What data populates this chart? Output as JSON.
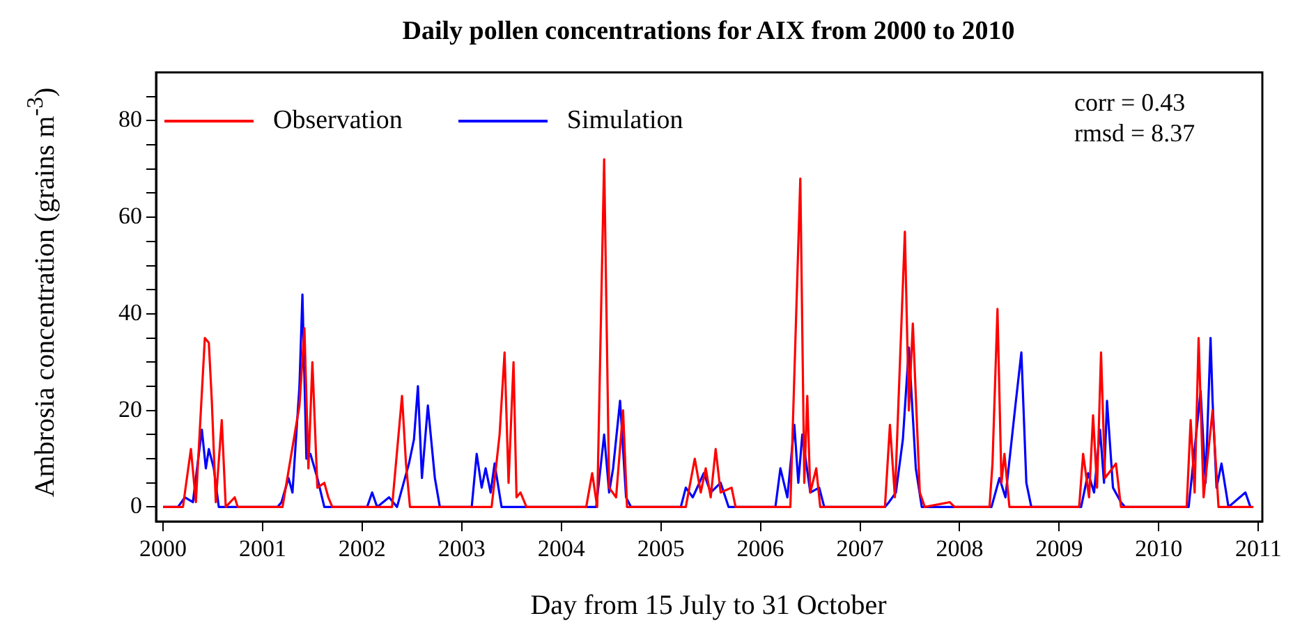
{
  "chart_data": {
    "type": "line",
    "title": "Daily pollen concentrations for AIX from 2000 to 2010",
    "xlabel": "Day from 15 July to 31 October",
    "ylabel": "Ambrosia concentration (grains m$^{-3}$)",
    "annotations": [
      "corr = 0.43",
      "rmsd = 8.37"
    ],
    "xlim": [
      1999.93,
      2011.04
    ],
    "xticks": [
      2000,
      2001,
      2002,
      2003,
      2004,
      2005,
      2006,
      2007,
      2008,
      2009,
      2010,
      2011
    ],
    "ylim": [
      -3,
      90
    ],
    "yticks": [
      0,
      {
        "value": 5,
        "label": null
      },
      {
        "value": 10,
        "label": null
      },
      {
        "value": 15,
        "label": null
      },
      20,
      {
        "value": 25,
        "label": null
      },
      {
        "value": 30,
        "label": null
      },
      {
        "value": 35,
        "label": null
      },
      40,
      {
        "value": 45,
        "label": null
      },
      {
        "value": 50,
        "label": null
      },
      {
        "value": 55,
        "label": null
      },
      60,
      {
        "value": 65,
        "label": null
      },
      {
        "value": 70,
        "label": null
      },
      {
        "value": 75,
        "label": null
      },
      80,
      {
        "value": 85,
        "label": null
      }
    ],
    "grid": false,
    "legend": "top left",
    "marker": "none",
    "line_style": "solid",
    "series": [
      {
        "name": "Observation",
        "color": "#ff0000",
        "x": [
          2000.0,
          2000.2,
          2000.28,
          2000.33,
          2000.42,
          2000.46,
          2000.49,
          2000.53,
          2000.59,
          2000.63,
          2000.72,
          2000.75,
          2001.2,
          2001.37,
          2001.42,
          2001.46,
          2001.5,
          2001.55,
          2001.62,
          2001.66,
          2001.7,
          2002.3,
          2002.4,
          2002.44,
          2002.48,
          2003.3,
          2003.38,
          2003.43,
          2003.47,
          2003.52,
          2003.55,
          2003.59,
          2003.65,
          2004.25,
          2004.31,
          2004.36,
          2004.43,
          2004.48,
          2004.55,
          2004.62,
          2004.66,
          2005.25,
          2005.34,
          2005.4,
          2005.45,
          2005.5,
          2005.55,
          2005.6,
          2005.71,
          2005.75,
          2006.3,
          2006.4,
          2006.44,
          2006.47,
          2006.5,
          2006.56,
          2006.6,
          2007.25,
          2007.3,
          2007.35,
          2007.45,
          2007.49,
          2007.53,
          2007.6,
          2007.65,
          2007.9,
          2007.95,
          2008.3,
          2008.33,
          2008.38,
          2008.42,
          2008.45,
          2008.5,
          2009.2,
          2009.24,
          2009.3,
          2009.34,
          2009.38,
          2009.42,
          2009.46,
          2009.57,
          2009.62,
          2010.28,
          2010.32,
          2010.36,
          2010.4,
          2010.45,
          2010.54,
          2010.6,
          2010.95
        ],
        "values": [
          0,
          0,
          12,
          1,
          35,
          34,
          22,
          1,
          18,
          0,
          2,
          0,
          0,
          21,
          37,
          8,
          30,
          4,
          5,
          2,
          0,
          0,
          23,
          9,
          0,
          0,
          15,
          32,
          5,
          30,
          2,
          3,
          0,
          0,
          7,
          0,
          72,
          4,
          2,
          20,
          0,
          0,
          10,
          3,
          8,
          2,
          12,
          3,
          4,
          0,
          0,
          68,
          5,
          23,
          3,
          8,
          0,
          0,
          17,
          2,
          57,
          20,
          38,
          3,
          0,
          1,
          0,
          0,
          9,
          41,
          5,
          11,
          0,
          0,
          11,
          2,
          19,
          4,
          32,
          6,
          9,
          0,
          0,
          18,
          3,
          35,
          2,
          20,
          0,
          0
        ]
      },
      {
        "name": "Simulation",
        "color": "#0000ff",
        "x": [
          2000.0,
          2000.15,
          2000.22,
          2000.3,
          2000.39,
          2000.43,
          2000.46,
          2000.51,
          2000.56,
          2001.15,
          2001.19,
          2001.26,
          2001.3,
          2001.37,
          2001.4,
          2001.44,
          2001.48,
          2001.55,
          2001.62,
          2002.05,
          2002.1,
          2002.15,
          2002.27,
          2002.35,
          2002.47,
          2002.52,
          2002.56,
          2002.6,
          2002.66,
          2002.73,
          2002.78,
          2003.1,
          2003.15,
          2003.2,
          2003.24,
          2003.29,
          2003.33,
          2003.4,
          2004.35,
          2004.43,
          2004.48,
          2004.52,
          2004.59,
          2004.65,
          2004.7,
          2005.2,
          2005.25,
          2005.32,
          2005.43,
          2005.5,
          2005.6,
          2005.68,
          2006.15,
          2006.2,
          2006.27,
          2006.34,
          2006.38,
          2006.42,
          2006.5,
          2006.59,
          2006.64,
          2007.25,
          2007.29,
          2007.36,
          2007.43,
          2007.49,
          2007.56,
          2007.62,
          2008.32,
          2008.4,
          2008.46,
          2008.56,
          2008.62,
          2008.67,
          2008.72,
          2009.22,
          2009.29,
          2009.35,
          2009.41,
          2009.45,
          2009.48,
          2009.54,
          2009.62,
          2009.66,
          2010.3,
          2010.42,
          2010.47,
          2010.52,
          2010.54,
          2010.58,
          2010.63,
          2010.7,
          2010.87,
          2010.92
        ],
        "values": [
          0,
          0,
          2,
          1,
          16,
          8,
          12,
          8,
          0,
          0,
          1,
          6,
          3,
          25,
          44,
          10,
          11,
          6,
          0,
          0,
          3,
          0,
          2,
          0,
          9,
          14,
          25,
          6,
          21,
          6,
          0,
          0,
          11,
          4,
          8,
          3,
          9,
          0,
          0,
          15,
          3,
          8,
          22,
          2,
          0,
          0,
          4,
          2,
          7,
          3,
          5,
          0,
          0,
          8,
          2,
          17,
          5,
          15,
          3,
          4,
          0,
          0,
          1,
          3,
          14,
          33,
          8,
          0,
          0,
          6,
          2,
          21,
          32,
          5,
          0,
          0,
          7,
          3,
          16,
          5,
          22,
          4,
          1,
          0,
          0,
          24,
          5,
          35,
          22,
          4,
          9,
          0,
          3,
          0
        ]
      }
    ]
  }
}
